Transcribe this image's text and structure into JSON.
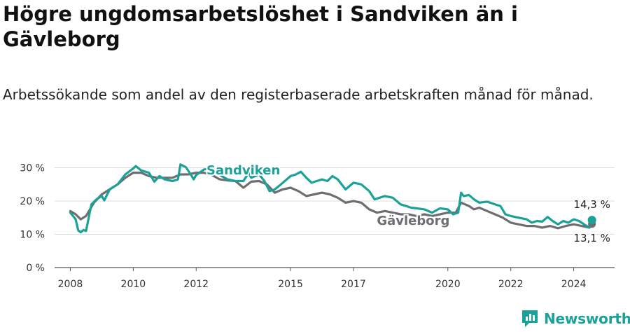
{
  "title": "Högre ungdomsarbetslöshet i Sandviken än i Gävleborg",
  "subtitle": "Arbetssökande som andel av den registerbaserade arbetskraften månad för månad.",
  "brand": {
    "name": "Newsworthy",
    "icon": "newsworthy-logo-icon",
    "color": "#1aa198"
  },
  "chart_data": {
    "type": "line",
    "ylabel": "",
    "xlabel": "",
    "y_ticks": [
      "0 %",
      "10 %",
      "20 %",
      "30 %"
    ],
    "y_tick_values": [
      0,
      10,
      20,
      30
    ],
    "ylim": [
      0,
      32
    ],
    "xlim": [
      2007.5,
      2025.3
    ],
    "x_ticks": [
      "2008",
      "2010",
      "2012",
      "2015",
      "2017",
      "2020",
      "2022",
      "2024"
    ],
    "x_tick_values": [
      2008,
      2010,
      2012,
      2015,
      2017,
      2020,
      2022,
      2024
    ],
    "grid": true,
    "series": [
      {
        "name": "Sandviken",
        "color": "#1aa198",
        "end_label": "14,3 %",
        "points": [
          [
            2008.0,
            16.5
          ],
          [
            2008.17,
            14.5
          ],
          [
            2008.25,
            11.2
          ],
          [
            2008.33,
            10.6
          ],
          [
            2008.42,
            11.3
          ],
          [
            2008.5,
            11.0
          ],
          [
            2008.67,
            19.0
          ],
          [
            2008.83,
            20.5
          ],
          [
            2009.0,
            21.5
          ],
          [
            2009.08,
            20.2
          ],
          [
            2009.25,
            23.5
          ],
          [
            2009.5,
            25.0
          ],
          [
            2009.75,
            28.0
          ],
          [
            2010.0,
            29.8
          ],
          [
            2010.08,
            30.5
          ],
          [
            2010.25,
            29.2
          ],
          [
            2010.5,
            28.5
          ],
          [
            2010.67,
            25.8
          ],
          [
            2010.83,
            27.5
          ],
          [
            2011.0,
            26.5
          ],
          [
            2011.25,
            26.0
          ],
          [
            2011.42,
            26.5
          ],
          [
            2011.5,
            31.0
          ],
          [
            2011.67,
            30.2
          ],
          [
            2011.83,
            28.0
          ],
          [
            2011.92,
            26.5
          ],
          [
            2012.0,
            27.8
          ],
          [
            2012.25,
            29.5
          ],
          [
            2012.5,
            29.8
          ],
          [
            2012.75,
            27.8
          ],
          [
            2013.0,
            26.5
          ],
          [
            2013.25,
            26.0
          ],
          [
            2013.5,
            26.0
          ],
          [
            2013.67,
            28.5
          ],
          [
            2013.75,
            27.0
          ],
          [
            2014.0,
            28.0
          ],
          [
            2014.17,
            26.0
          ],
          [
            2014.33,
            23.0
          ],
          [
            2014.5,
            23.5
          ],
          [
            2014.67,
            24.8
          ],
          [
            2015.0,
            27.5
          ],
          [
            2015.17,
            28.0
          ],
          [
            2015.33,
            28.8
          ],
          [
            2015.5,
            27.0
          ],
          [
            2015.67,
            25.5
          ],
          [
            2015.83,
            26.0
          ],
          [
            2016.0,
            26.5
          ],
          [
            2016.17,
            26.0
          ],
          [
            2016.33,
            27.5
          ],
          [
            2016.5,
            26.5
          ],
          [
            2016.75,
            23.5
          ],
          [
            2017.0,
            25.5
          ],
          [
            2017.25,
            25.0
          ],
          [
            2017.5,
            23.0
          ],
          [
            2017.67,
            20.5
          ],
          [
            2017.83,
            21.0
          ],
          [
            2018.0,
            21.5
          ],
          [
            2018.25,
            21.0
          ],
          [
            2018.5,
            19.0
          ],
          [
            2018.67,
            18.5
          ],
          [
            2018.83,
            18.0
          ],
          [
            2019.0,
            17.8
          ],
          [
            2019.25,
            17.5
          ],
          [
            2019.5,
            16.5
          ],
          [
            2019.75,
            17.8
          ],
          [
            2020.0,
            17.5
          ],
          [
            2020.17,
            16.0
          ],
          [
            2020.33,
            16.5
          ],
          [
            2020.42,
            22.5
          ],
          [
            2020.5,
            21.5
          ],
          [
            2020.67,
            21.8
          ],
          [
            2020.83,
            20.5
          ],
          [
            2021.0,
            19.5
          ],
          [
            2021.25,
            19.8
          ],
          [
            2021.5,
            19.0
          ],
          [
            2021.67,
            18.5
          ],
          [
            2021.83,
            16.0
          ],
          [
            2022.0,
            15.5
          ],
          [
            2022.25,
            15.0
          ],
          [
            2022.5,
            14.5
          ],
          [
            2022.67,
            13.5
          ],
          [
            2022.83,
            14.0
          ],
          [
            2023.0,
            13.8
          ],
          [
            2023.17,
            15.2
          ],
          [
            2023.33,
            14.0
          ],
          [
            2023.5,
            13.0
          ],
          [
            2023.67,
            14.0
          ],
          [
            2023.83,
            13.5
          ],
          [
            2024.0,
            14.5
          ],
          [
            2024.17,
            14.0
          ],
          [
            2024.33,
            13.0
          ],
          [
            2024.5,
            12.0
          ],
          [
            2024.58,
            14.3
          ]
        ]
      },
      {
        "name": "Gävleborg",
        "color": "#6e6e72",
        "end_label": "13,1 %",
        "points": [
          [
            2008.0,
            17.0
          ],
          [
            2008.17,
            16.0
          ],
          [
            2008.33,
            14.5
          ],
          [
            2008.5,
            15.5
          ],
          [
            2008.75,
            19.5
          ],
          [
            2009.0,
            22.0
          ],
          [
            2009.25,
            23.5
          ],
          [
            2009.5,
            25.0
          ],
          [
            2009.75,
            27.0
          ],
          [
            2010.0,
            28.5
          ],
          [
            2010.25,
            28.5
          ],
          [
            2010.5,
            27.5
          ],
          [
            2010.75,
            27.0
          ],
          [
            2011.0,
            27.0
          ],
          [
            2011.25,
            27.0
          ],
          [
            2011.5,
            28.0
          ],
          [
            2011.75,
            28.0
          ],
          [
            2012.0,
            28.5
          ],
          [
            2012.25,
            28.5
          ],
          [
            2012.5,
            27.8
          ],
          [
            2012.75,
            26.5
          ],
          [
            2013.0,
            26.2
          ],
          [
            2013.25,
            26.0
          ],
          [
            2013.5,
            24.0
          ],
          [
            2013.75,
            25.8
          ],
          [
            2014.0,
            26.0
          ],
          [
            2014.25,
            25.0
          ],
          [
            2014.5,
            22.5
          ],
          [
            2014.75,
            23.5
          ],
          [
            2015.0,
            24.0
          ],
          [
            2015.25,
            23.0
          ],
          [
            2015.5,
            21.5
          ],
          [
            2015.75,
            22.0
          ],
          [
            2016.0,
            22.5
          ],
          [
            2016.25,
            22.0
          ],
          [
            2016.5,
            21.0
          ],
          [
            2016.75,
            19.5
          ],
          [
            2017.0,
            20.0
          ],
          [
            2017.25,
            19.5
          ],
          [
            2017.5,
            17.5
          ],
          [
            2017.75,
            16.5
          ],
          [
            2018.0,
            17.0
          ],
          [
            2018.25,
            16.5
          ],
          [
            2018.5,
            16.0
          ],
          [
            2018.75,
            16.0
          ],
          [
            2019.0,
            15.5
          ],
          [
            2019.25,
            16.0
          ],
          [
            2019.5,
            15.5
          ],
          [
            2019.75,
            16.0
          ],
          [
            2020.0,
            16.5
          ],
          [
            2020.25,
            16.5
          ],
          [
            2020.42,
            19.5
          ],
          [
            2020.67,
            18.5
          ],
          [
            2020.83,
            17.5
          ],
          [
            2021.0,
            18.0
          ],
          [
            2021.25,
            17.0
          ],
          [
            2021.5,
            16.0
          ],
          [
            2021.75,
            15.0
          ],
          [
            2022.0,
            13.5
          ],
          [
            2022.25,
            13.0
          ],
          [
            2022.5,
            12.5
          ],
          [
            2022.75,
            12.5
          ],
          [
            2023.0,
            12.0
          ],
          [
            2023.25,
            12.5
          ],
          [
            2023.5,
            11.8
          ],
          [
            2023.75,
            12.5
          ],
          [
            2024.0,
            13.0
          ],
          [
            2024.25,
            12.5
          ],
          [
            2024.5,
            12.0
          ],
          [
            2024.58,
            13.1
          ]
        ]
      }
    ]
  }
}
